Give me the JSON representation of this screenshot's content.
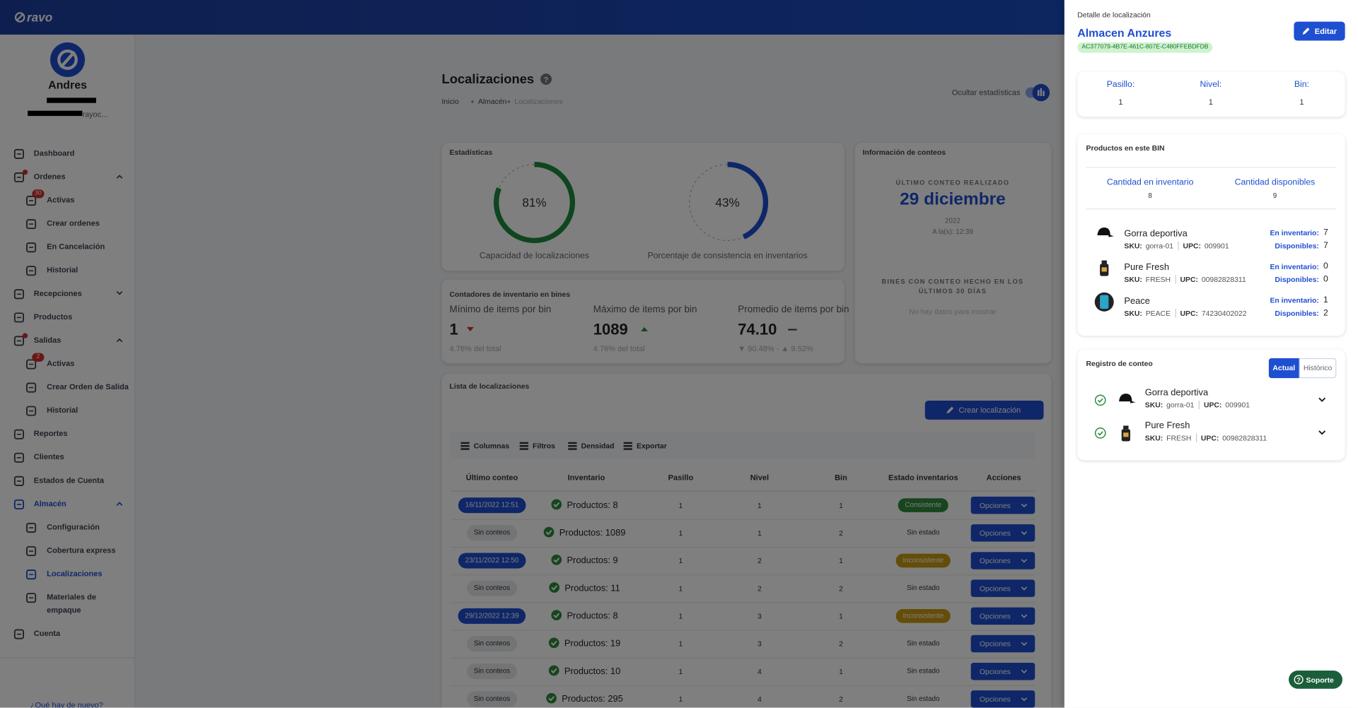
{
  "header": {
    "logo": "ravo"
  },
  "sidebar": {
    "user_name": "Andres",
    "user_email": "rayoc...",
    "footer": "¿Qué hay de nuevo?",
    "menu": [
      {
        "label": "Dashboard",
        "level": 1
      },
      {
        "label": "Ordenes",
        "level": 1,
        "expand": "up",
        "dot": true
      },
      {
        "label": "Activas",
        "level": 2,
        "badge": "30"
      },
      {
        "label": "Crear ordenes",
        "level": 2
      },
      {
        "label": "En Cancelación",
        "level": 2
      },
      {
        "label": "Historial",
        "level": 2
      },
      {
        "label": "Recepciones",
        "level": 1,
        "expand": "down"
      },
      {
        "label": "Productos",
        "level": 1
      },
      {
        "label": "Salidas",
        "level": 1,
        "expand": "up",
        "dot": true
      },
      {
        "label": "Activas",
        "level": 2,
        "badge": "2"
      },
      {
        "label": "Crear Orden de Salida",
        "level": 2
      },
      {
        "label": "Historial",
        "level": 2
      },
      {
        "label": "Reportes",
        "level": 1
      },
      {
        "label": "Clientes",
        "level": 1
      },
      {
        "label": "Estados de Cuenta",
        "level": 1
      },
      {
        "label": "Almacén",
        "level": 1,
        "expand": "up",
        "active": true
      },
      {
        "label": "Configuración",
        "level": 2
      },
      {
        "label": "Cobertura express",
        "level": 2
      },
      {
        "label": "Localizaciones",
        "level": 2,
        "active": true
      },
      {
        "label": "Materiales de empaque",
        "level": 2
      },
      {
        "label": "Cuenta",
        "level": 1
      }
    ]
  },
  "page": {
    "title": "Localizaciones",
    "breadcrumb": [
      "Inicio",
      "Almacén",
      "Localizaciones"
    ],
    "toggle_label": "Ocultar estadísticas",
    "stats": {
      "title": "Estadísticas",
      "gauges": [
        {
          "value": 81,
          "label": "81%",
          "caption": "Capacidad de localizaciones",
          "color": "#1f8a3f"
        },
        {
          "value": 43,
          "label": "43%",
          "caption": "Porcentaje de consistencia en inventarios",
          "color": "#1f4fd1"
        }
      ]
    },
    "counts": {
      "title": "Información de conteos",
      "last_label": "ÚLTIMO CONTEO REALIZADO",
      "last_date": "29 diciembre",
      "last_year": "2022",
      "last_time": "A la(s): 12:39",
      "bins_label": "BINES CON CONTEO HECHO EN LOS ÚLTIMOS 30 DÍAS",
      "bins_empty": "No hay datos para mostrar"
    },
    "counters": {
      "title": "Contadores de inventario en bines",
      "items": [
        {
          "label": "Mínimo de items por bin",
          "value": "1",
          "note": "4.76% del total",
          "trend": "down"
        },
        {
          "label": "Máximo de items por bin",
          "value": "1089",
          "note": "4.76% del total",
          "trend": "up"
        },
        {
          "label": "Promedio de items por bin",
          "value": "74.10",
          "note": "▼ 90.48% - ▲ 9.52%",
          "trend": "flat"
        }
      ]
    },
    "table": {
      "title": "Lista de localizaciones",
      "create_button": "Crear localización",
      "toolbar": [
        "Columnas",
        "Filtros",
        "Densidad",
        "Exportar"
      ],
      "columns": [
        "Último conteo",
        "Inventario",
        "Pasillo",
        "Nivel",
        "Bin",
        "Estado inventarios",
        "Acciones"
      ],
      "action_label": "Opciones",
      "rows": [
        {
          "last_count": "16/11/2022 12:51",
          "last_count_color": "#1f4fd1",
          "inventory": "Productos: 8",
          "aisle": 1,
          "level": 1,
          "bin": 1,
          "status": "Consistente",
          "status_color": "#2e8b3a"
        },
        {
          "last_count": "Sin conteos",
          "last_count_color": null,
          "inventory": "Productos: 1089",
          "aisle": 1,
          "level": 1,
          "bin": 2,
          "status": "Sin estado",
          "status_color": null
        },
        {
          "last_count": "23/11/2022 12:50",
          "last_count_color": "#1f4fd1",
          "inventory": "Productos: 9",
          "aisle": 1,
          "level": 2,
          "bin": 1,
          "status": "Inconsistente",
          "status_color": "#c99a10"
        },
        {
          "last_count": "Sin conteos",
          "last_count_color": null,
          "inventory": "Productos: 11",
          "aisle": 1,
          "level": 2,
          "bin": 2,
          "status": "Sin estado",
          "status_color": null
        },
        {
          "last_count": "29/12/2022 12:39",
          "last_count_color": "#1f4fd1",
          "inventory": "Productos: 8",
          "aisle": 1,
          "level": 3,
          "bin": 1,
          "status": "Inconsistente",
          "status_color": "#c99a10"
        },
        {
          "last_count": "Sin conteos",
          "last_count_color": null,
          "inventory": "Productos: 19",
          "aisle": 1,
          "level": 3,
          "bin": 2,
          "status": "Sin estado",
          "status_color": null
        },
        {
          "last_count": "Sin conteos",
          "last_count_color": null,
          "inventory": "Productos: 10",
          "aisle": 1,
          "level": 4,
          "bin": 1,
          "status": "Sin estado",
          "status_color": null
        },
        {
          "last_count": "Sin conteos",
          "last_count_color": null,
          "inventory": "Productos: 295",
          "aisle": 1,
          "level": 4,
          "bin": 2,
          "status": "Sin estado",
          "status_color": null
        }
      ]
    }
  },
  "drawer": {
    "heading": "Detalle de localización",
    "name": "Almacen Anzures",
    "id": "AC377079-4B7E-461C-807E-C480FFEBDFDB",
    "edit_button": "Editar",
    "location": [
      {
        "label": "Pasillo:",
        "value": 1
      },
      {
        "label": "Nivel:",
        "value": 1
      },
      {
        "label": "Bin:",
        "value": 1
      }
    ],
    "labels": {
      "sku": "SKU:",
      "upc": "UPC:",
      "inventory": "En inventario:",
      "available": "Disponibles:"
    },
    "products_card": {
      "title": "Productos en este BIN",
      "inventory_label": "Cantidad en inventario",
      "inventory_value": 8,
      "available_label": "Cantidad disponibles",
      "available_value": 9,
      "products": [
        {
          "name": "Gorra deportiva",
          "sku": "gorra-01",
          "upc": "009901",
          "inventory": 7,
          "available": 7
        },
        {
          "name": "Pure Fresh",
          "sku": "FRESH",
          "upc": "00982828311",
          "inventory": 0,
          "available": 0
        },
        {
          "name": "Peace",
          "sku": "PEACE",
          "upc": "74230402022",
          "inventory": 1,
          "available": 2
        }
      ]
    },
    "count_log": {
      "title": "Registro de conteo",
      "tabs": [
        "Actual",
        "Histórico"
      ],
      "items": [
        {
          "name": "Gorra deportiva",
          "sku": "gorra-01",
          "upc": "009901"
        },
        {
          "name": "Pure Fresh",
          "sku": "FRESH",
          "upc": "00982828311"
        }
      ]
    },
    "support_button": "Soporte"
  }
}
